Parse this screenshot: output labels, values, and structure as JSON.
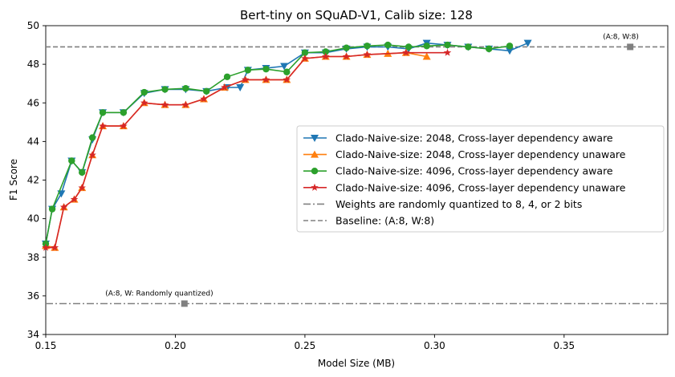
{
  "chart_data": {
    "type": "line",
    "title": "Bert-tiny on SQuAD-V1, Calib size: 128",
    "xlabel": "Model Size (MB)",
    "ylabel": "F1 Score",
    "xlim": [
      0.15,
      0.39
    ],
    "ylim": [
      34,
      50
    ],
    "xticks": [
      0.15,
      0.2,
      0.25,
      0.3,
      0.35
    ],
    "xtick_labels": [
      "0.15",
      "0.20",
      "0.25",
      "0.30",
      "0.35"
    ],
    "yticks": [
      34,
      36,
      38,
      40,
      42,
      44,
      46,
      48,
      50
    ],
    "ytick_labels": [
      "34",
      "36",
      "38",
      "40",
      "42",
      "44",
      "46",
      "48",
      "50"
    ],
    "grid": false,
    "legend_position": "center-right",
    "series": [
      {
        "name": "Clado-Naive-size: 2048, Cross-layer dependency aware",
        "color": "#1f77b4",
        "marker": "triangle-down",
        "x": [
          0.15,
          0.1525,
          0.156,
          0.16,
          0.164,
          0.168,
          0.172,
          0.18,
          0.188,
          0.196,
          0.204,
          0.212,
          0.22,
          0.225,
          0.228,
          0.235,
          0.242,
          0.25,
          0.258,
          0.266,
          0.274,
          0.282,
          0.29,
          0.297,
          0.305,
          0.313,
          0.321,
          0.329,
          0.336
        ],
        "y": [
          38.7,
          40.5,
          41.3,
          43.0,
          42.4,
          44.1,
          45.5,
          45.5,
          46.5,
          46.7,
          46.7,
          46.6,
          46.8,
          46.8,
          47.7,
          47.8,
          47.9,
          48.6,
          48.6,
          48.8,
          48.9,
          48.9,
          48.8,
          49.1,
          49.0,
          48.9,
          48.8,
          48.7,
          49.1
        ]
      },
      {
        "name": "Clado-Naive-size: 2048, Cross-layer dependency unaware",
        "color": "#ff7f0e",
        "marker": "triangle-up",
        "x": [
          0.15,
          0.1535,
          0.157,
          0.161,
          0.164,
          0.168,
          0.172,
          0.18,
          0.188,
          0.196,
          0.204,
          0.211,
          0.219,
          0.227,
          0.235,
          0.243,
          0.25,
          0.258,
          0.266,
          0.274,
          0.282,
          0.289,
          0.297
        ],
        "y": [
          38.6,
          38.5,
          40.6,
          41.0,
          41.6,
          43.3,
          44.8,
          44.8,
          46.0,
          45.9,
          45.9,
          46.2,
          46.8,
          47.2,
          47.2,
          47.2,
          48.3,
          48.4,
          48.4,
          48.5,
          48.55,
          48.6,
          48.4
        ]
      },
      {
        "name": "Clado-Naive-size: 4096, Cross-layer dependency aware",
        "color": "#2ca02c",
        "marker": "circle",
        "x": [
          0.15,
          0.1525,
          0.16,
          0.164,
          0.168,
          0.172,
          0.18,
          0.188,
          0.196,
          0.204,
          0.212,
          0.22,
          0.228,
          0.235,
          0.243,
          0.25,
          0.258,
          0.266,
          0.274,
          0.282,
          0.29,
          0.297,
          0.305,
          0.313,
          0.321,
          0.329
        ],
        "y": [
          38.7,
          40.5,
          43.0,
          42.4,
          44.2,
          45.5,
          45.5,
          46.55,
          46.7,
          46.75,
          46.6,
          47.35,
          47.7,
          47.75,
          47.6,
          48.6,
          48.65,
          48.85,
          48.95,
          49.0,
          48.9,
          48.95,
          49.0,
          48.9,
          48.8,
          48.95
        ]
      },
      {
        "name": "Clado-Naive-size: 4096, Cross-layer dependency unaware",
        "color": "#d62728",
        "marker": "star",
        "x": [
          0.15,
          0.1535,
          0.157,
          0.161,
          0.164,
          0.168,
          0.172,
          0.18,
          0.188,
          0.196,
          0.204,
          0.211,
          0.219,
          0.227,
          0.235,
          0.243,
          0.25,
          0.258,
          0.266,
          0.274,
          0.289,
          0.305
        ],
        "y": [
          38.5,
          38.5,
          40.6,
          41.0,
          41.6,
          43.3,
          44.8,
          44.8,
          46.0,
          45.9,
          45.9,
          46.2,
          46.8,
          47.2,
          47.2,
          47.2,
          48.3,
          48.4,
          48.4,
          48.5,
          48.6,
          48.6
        ]
      }
    ],
    "reference_lines": [
      {
        "name": "Weights are randomly quantized to 8, 4, or 2 bits",
        "y": 35.6,
        "color": "#808080",
        "style": "dashdot",
        "marker_x": 0.2035,
        "annotation": "(A:8, W: Randomly quantized)",
        "annotation_x": 0.173
      },
      {
        "name": "Baseline: (A:8, W:8)",
        "y": 48.9,
        "color": "#808080",
        "style": "dashed",
        "marker_x": 0.3755,
        "annotation": "(A:8, W:8)",
        "annotation_x": 0.365
      }
    ]
  }
}
